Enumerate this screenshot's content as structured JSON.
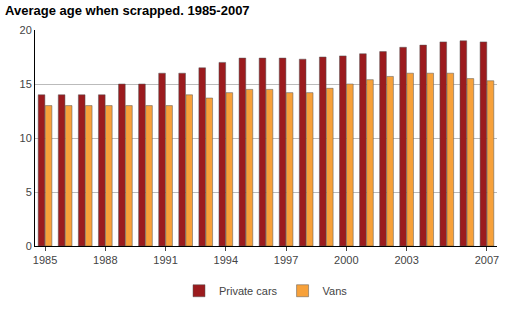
{
  "chart_data": {
    "type": "bar",
    "title": "Average age when scrapped. 1985-2007",
    "categories": [
      "1985",
      null,
      null,
      "1988",
      null,
      null,
      "1991",
      null,
      null,
      "1994",
      null,
      null,
      "1997",
      null,
      null,
      "2000",
      null,
      null,
      "2003",
      null,
      null,
      null,
      "2007"
    ],
    "series": [
      {
        "name": "Private cars",
        "color": "#9b1b1e",
        "values": [
          14,
          14,
          14,
          14,
          15,
          15,
          16,
          16,
          16.5,
          17,
          17.4,
          17.4,
          17.4,
          17.3,
          17.5,
          17.6,
          17.8,
          18,
          18.4,
          18.6,
          18.9,
          19,
          18.9
        ]
      },
      {
        "name": "Vans",
        "color": "#f7a13a",
        "values": [
          13,
          13,
          13,
          13,
          13,
          13,
          13,
          14,
          13.7,
          14.2,
          14.5,
          14.5,
          14.2,
          14.2,
          14.6,
          15,
          15.4,
          15.7,
          16,
          16,
          16,
          15.5,
          15.3
        ]
      }
    ],
    "ylim": [
      0,
      20
    ],
    "yticks": [
      0,
      5,
      10,
      15,
      20
    ],
    "grid": true,
    "legend": "bottom"
  }
}
